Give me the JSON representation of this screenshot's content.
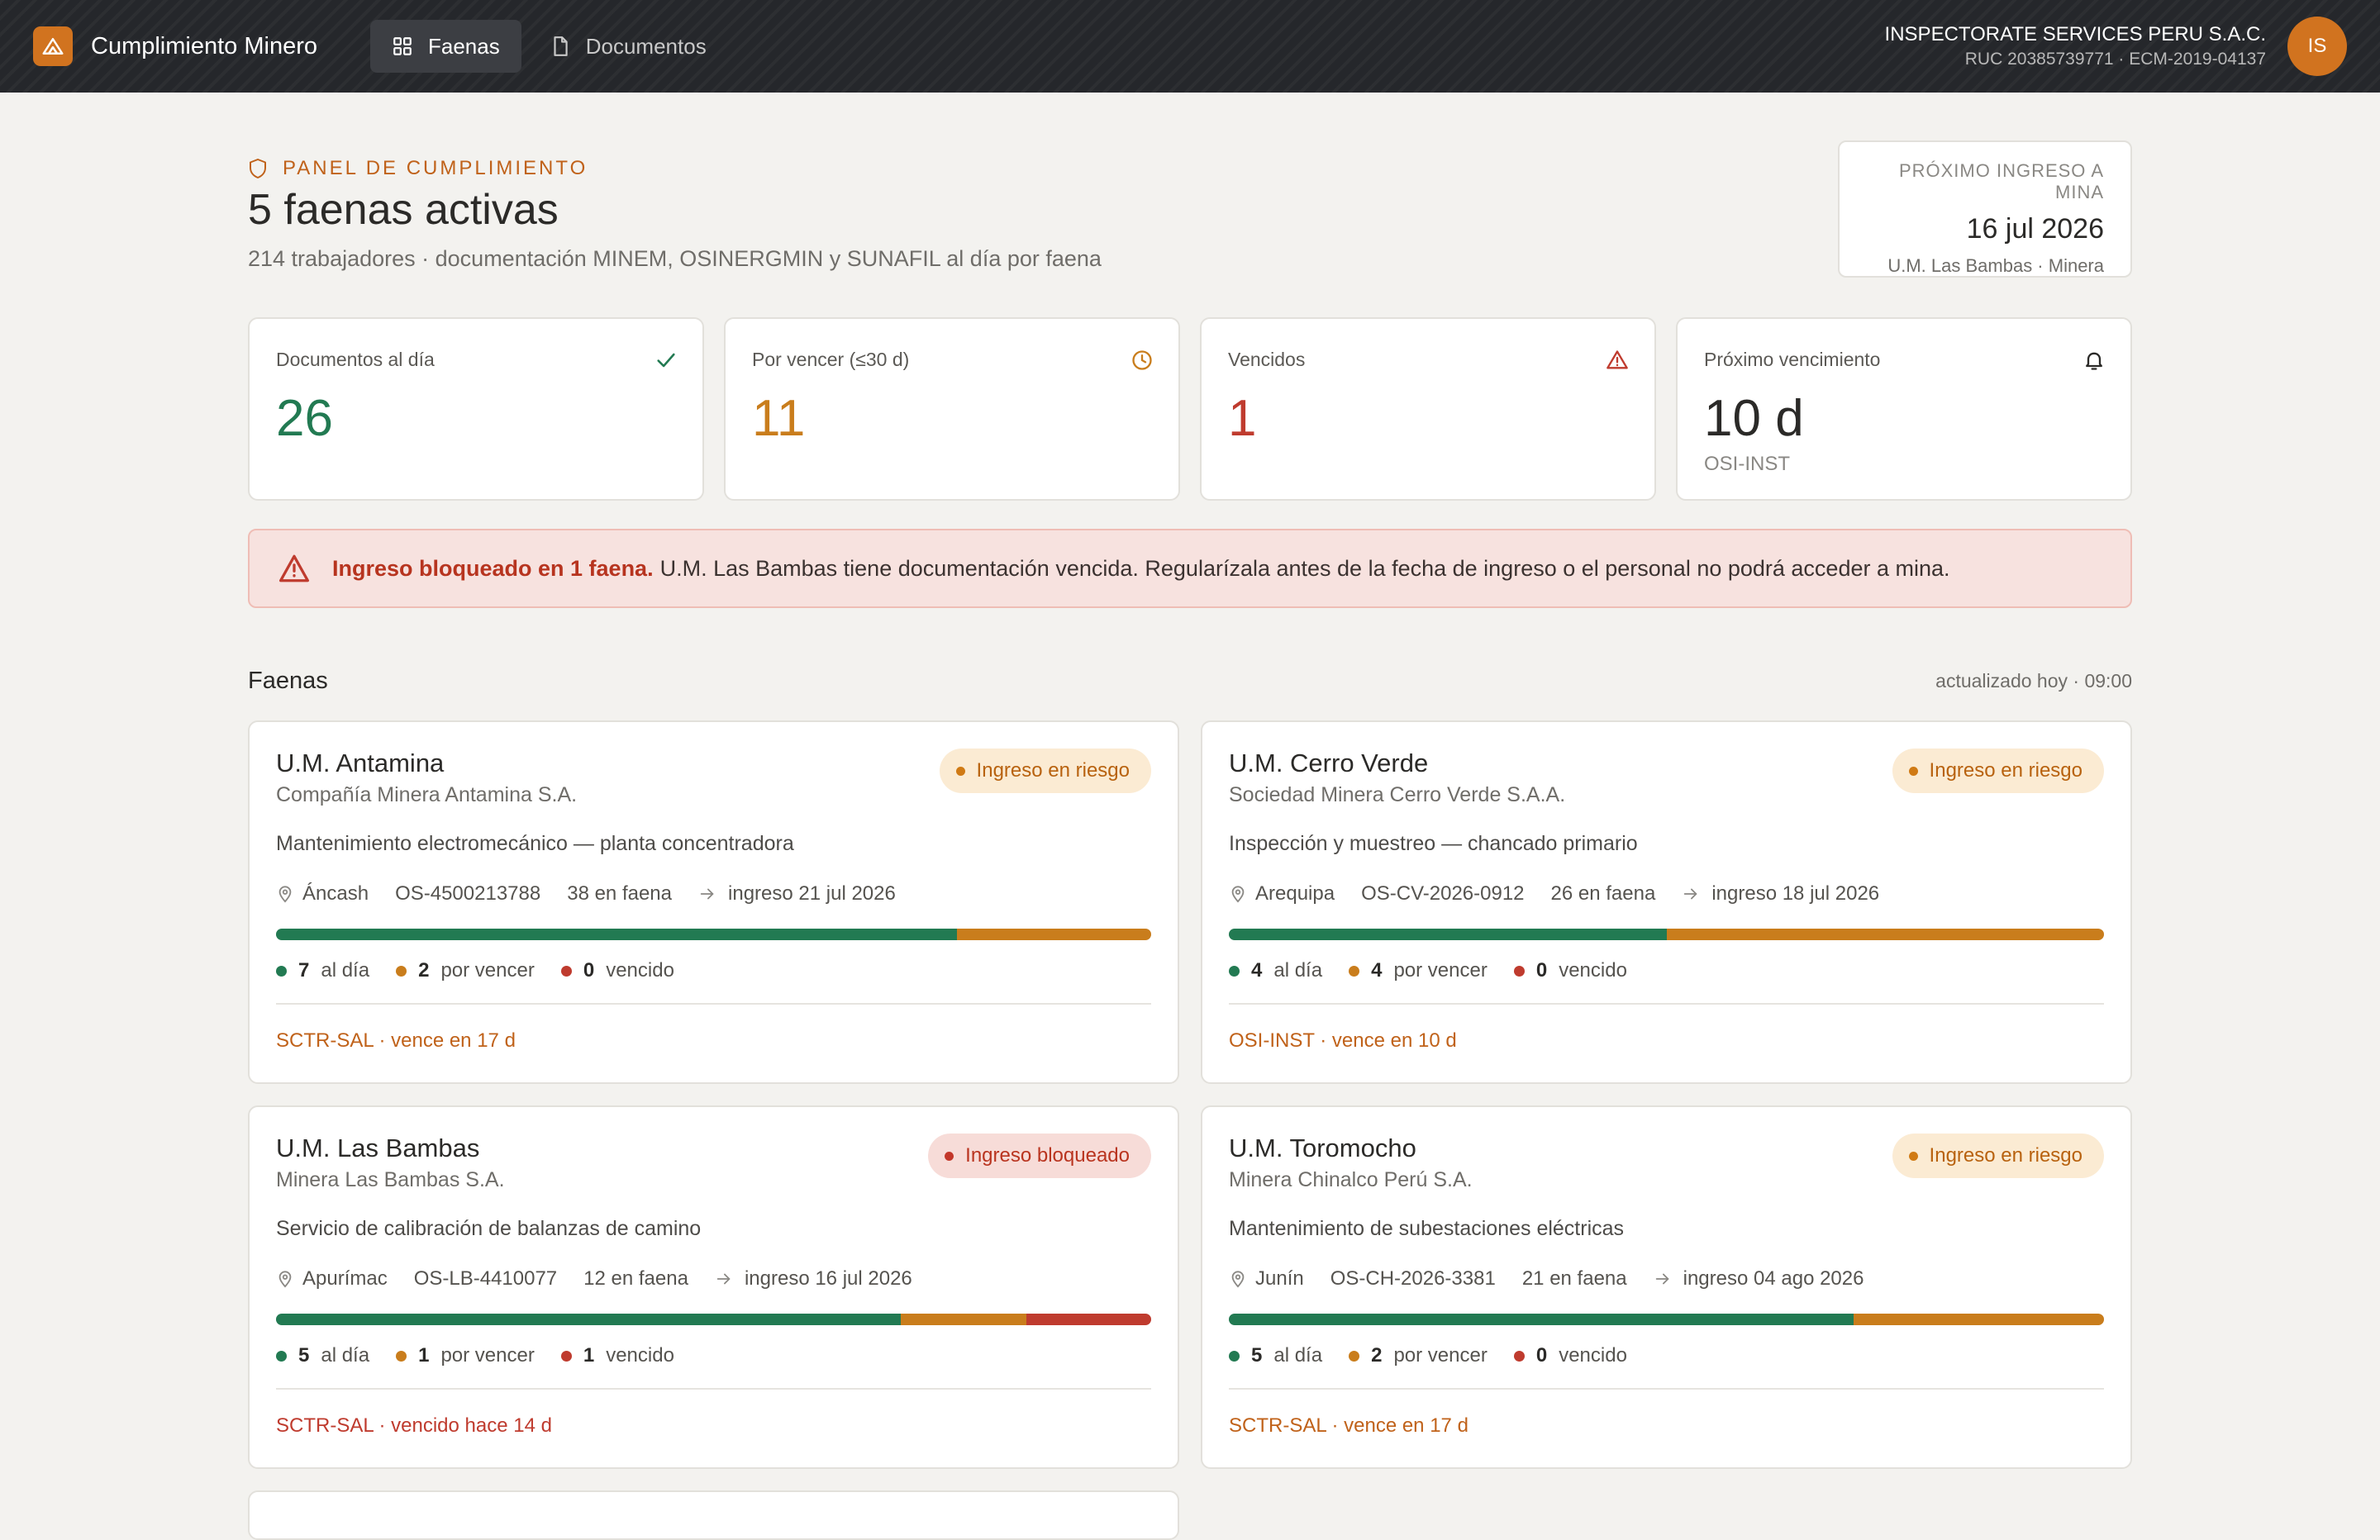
{
  "app": {
    "title": "Cumplimiento Minero",
    "nav": [
      {
        "label": "Faenas",
        "icon": "grid-icon",
        "active": true
      },
      {
        "label": "Documentos",
        "icon": "document-icon",
        "active": false
      }
    ],
    "org_name": "INSPECTORATE SERVICES PERU S.A.C.",
    "org_sub": "RUC 20385739771 · ECM-2019-04137",
    "avatar_initials": "IS"
  },
  "header": {
    "eyebrow": "PANEL DE CUMPLIMIENTO",
    "title": "5 faenas activas",
    "subtitle": "214 trabajadores · documentación MINEM, OSINERGMIN y SUNAFIL al día por faena",
    "next_entry": {
      "label": "PRÓXIMO INGRESO A MINA",
      "date": "16 jul 2026",
      "site": "U.M. Las Bambas · Minera"
    }
  },
  "stats": [
    {
      "label": "Documentos al día",
      "value": "26",
      "tone": "green",
      "icon": "check-icon"
    },
    {
      "label": "Por vencer (≤30 d)",
      "value": "11",
      "tone": "amber",
      "icon": "clock-icon"
    },
    {
      "label": "Vencidos",
      "value": "1",
      "tone": "red",
      "icon": "warning-icon"
    },
    {
      "label": "Próximo vencimiento",
      "value": "10 d",
      "sub": "OSI-INST",
      "tone": "dark",
      "icon": "bell-icon"
    }
  ],
  "alert": {
    "strong": "Ingreso bloqueado en 1 faena.",
    "text": "U.M. Las Bambas tiene documentación vencida. Regularízala antes de la fecha de ingreso o el personal no podrá acceder a mina."
  },
  "section": {
    "title": "Faenas",
    "updated": "actualizado hoy · 09:00"
  },
  "legend_labels": {
    "ok": "al día",
    "warn": "por vencer",
    "bad": "vencido"
  },
  "faenas": [
    {
      "name": "U.M. Antamina",
      "company": "Compañía Minera Antamina S.A.",
      "status": "Ingreso en riesgo",
      "status_tone": "risk",
      "service": "Mantenimiento electromecánico — planta concentradora",
      "region": "Áncash",
      "order": "OS-4500213788",
      "workers": "38 en faena",
      "entry": "ingreso 21 jul 2026",
      "ok": "7",
      "warn": "2",
      "bad": "0",
      "footer": "SCTR-SAL · vence en 17 d",
      "footer_tone": "warn"
    },
    {
      "name": "U.M. Cerro Verde",
      "company": "Sociedad Minera Cerro Verde S.A.A.",
      "status": "Ingreso en riesgo",
      "status_tone": "risk",
      "service": "Inspección y muestreo — chancado primario",
      "region": "Arequipa",
      "order": "OS-CV-2026-0912",
      "workers": "26 en faena",
      "entry": "ingreso 18 jul 2026",
      "ok": "4",
      "warn": "4",
      "bad": "0",
      "footer": "OSI-INST · vence en 10 d",
      "footer_tone": "warn"
    },
    {
      "name": "U.M. Las Bambas",
      "company": "Minera Las Bambas S.A.",
      "status": "Ingreso bloqueado",
      "status_tone": "blocked",
      "service": "Servicio de calibración de balanzas de camino",
      "region": "Apurímac",
      "order": "OS-LB-4410077",
      "workers": "12 en faena",
      "entry": "ingreso 16 jul 2026",
      "ok": "5",
      "warn": "1",
      "bad": "1",
      "footer": "SCTR-SAL · vencido hace 14 d",
      "footer_tone": "bad"
    },
    {
      "name": "U.M. Toromocho",
      "company": "Minera Chinalco Perú S.A.",
      "status": "Ingreso en riesgo",
      "status_tone": "risk",
      "service": "Mantenimiento de subestaciones eléctricas",
      "region": "Junín",
      "order": "OS-CH-2026-3381",
      "workers": "21 en faena",
      "entry": "ingreso 04 ago 2026",
      "ok": "5",
      "warn": "2",
      "bad": "0",
      "footer": "SCTR-SAL · vence en 17 d",
      "footer_tone": "warn"
    }
  ],
  "colors": {
    "accent": "#d1731f",
    "ok": "#227a52",
    "warn": "#c97d1c",
    "bad": "#bf3b2e"
  }
}
